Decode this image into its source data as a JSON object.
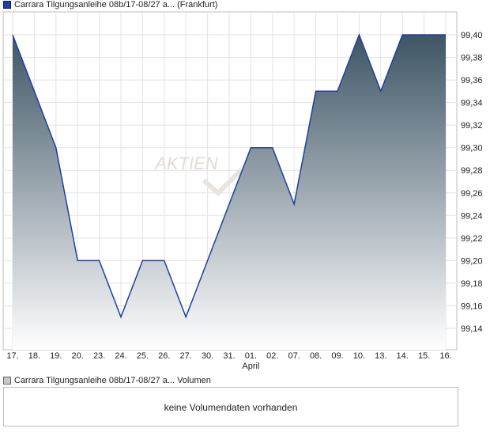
{
  "legend": {
    "price_label": "Carrara Tilgungsanleihe 08b/17-08/27 a...  (Frankfurt)",
    "volume_label": "Carrara Tilgungsanleihe 08b/17-08/27 a...  Volumen",
    "price_color": "#1f3f9f"
  },
  "watermark": {
    "text": "AKTIEN"
  },
  "volume": {
    "message": "keine Volumendaten vorhanden"
  },
  "chart_data": {
    "type": "area",
    "title": "",
    "xlabel": "",
    "ylabel": "",
    "ylim": [
      99.125,
      99.42
    ],
    "y_ticks": [
      "99,14",
      "99,16",
      "99,18",
      "99,20",
      "99,22",
      "99,24",
      "99,26",
      "99,28",
      "99,30",
      "99,32",
      "99,34",
      "99,36",
      "99,38",
      "99,40"
    ],
    "x_ticks": [
      "17.",
      "18.",
      "19.",
      "20.",
      "23.",
      "24.",
      "25.",
      "26.",
      "27.",
      "30.",
      "31.",
      "01.",
      "02.",
      "07.",
      "08.",
      "09.",
      "10.",
      "13.",
      "14.",
      "15.",
      "16."
    ],
    "x_month_label": {
      "text": "April",
      "at": "01."
    },
    "grid": true,
    "series": [
      {
        "x": [
          "17.",
          "18.",
          "19.",
          "20.",
          "23.",
          "24.",
          "25.",
          "26.",
          "27.",
          "30.",
          "31.",
          "01.",
          "02.",
          "07.",
          "08.",
          "09.",
          "10.",
          "13.",
          "14.",
          "15.",
          "16."
        ],
        "values": [
          99.4,
          99.35,
          99.3,
          99.2,
          99.2,
          99.15,
          99.2,
          99.2,
          99.15,
          99.2,
          99.25,
          99.3,
          99.3,
          99.25,
          99.35,
          99.35,
          99.4,
          99.35,
          99.4,
          99.4,
          99.4
        ]
      }
    ],
    "colors": {
      "line": "#1f3f9f",
      "fill_top": "#3e5565",
      "fill_bottom": "#ffffff"
    }
  }
}
